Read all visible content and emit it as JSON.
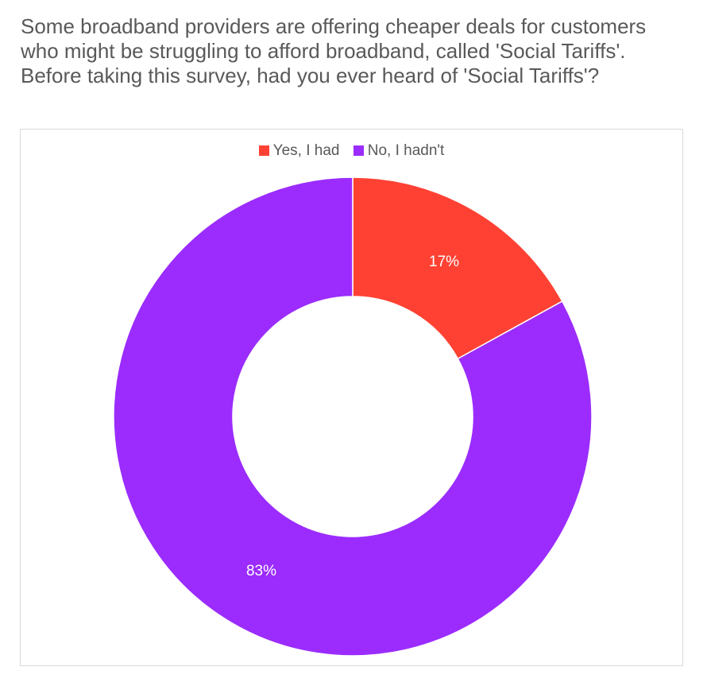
{
  "question": {
    "lines": [
      "Some broadband providers are offering cheaper deals for customers",
      "who might be struggling to afford broadband, called 'Social Tariffs'.",
      "Before taking this survey, had you ever heard of 'Social Tariffs'?"
    ]
  },
  "chart_data": {
    "type": "pie",
    "variant": "donut",
    "title": "",
    "legend_position": "top",
    "slices": [
      {
        "name": "Yes, I had",
        "value": 17,
        "label": "17%",
        "color": "#ff4133"
      },
      {
        "name": "No, I hadn't",
        "value": 83,
        "label": "83%",
        "color": "#9b2cfd"
      }
    ]
  }
}
